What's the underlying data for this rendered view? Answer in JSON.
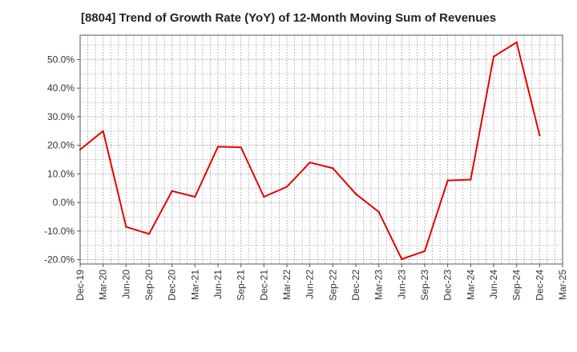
{
  "chart_data": {
    "type": "line",
    "title": "[8804]  Trend of Growth Rate (YoY) of 12-Month Moving Sum of Revenues",
    "xlabel": "",
    "ylabel": "",
    "x_ticks": [
      "Dec-19",
      "Mar-20",
      "Jun-20",
      "Sep-20",
      "Dec-20",
      "Mar-21",
      "Jun-21",
      "Sep-21",
      "Dec-21",
      "Mar-22",
      "Jun-22",
      "Sep-22",
      "Dec-22",
      "Mar-23",
      "Jun-23",
      "Sep-23",
      "Dec-23",
      "Mar-24",
      "Jun-24",
      "Sep-24",
      "Dec-24",
      "Mar-25"
    ],
    "y_ticks": [
      "-20.0%",
      "-10.0%",
      "0.0%",
      "10.0%",
      "20.0%",
      "30.0%",
      "40.0%",
      "50.0%"
    ],
    "y_tick_values": [
      -20,
      -10,
      0,
      10,
      20,
      30,
      40,
      50
    ],
    "ylim": [
      -21.5,
      58.5
    ],
    "grid": true,
    "series": [
      {
        "color": "#e60000",
        "x": [
          "Dec-19",
          "Mar-20",
          "Jun-20",
          "Sep-20",
          "Dec-20",
          "Mar-21",
          "Jun-21",
          "Sep-21",
          "Dec-21",
          "Mar-22",
          "Jun-22",
          "Sep-22",
          "Dec-22",
          "Mar-23",
          "Jun-23",
          "Sep-23",
          "Dec-23",
          "Mar-24",
          "Jun-24",
          "Sep-24",
          "Dec-24"
        ],
        "values": [
          18.5,
          25.0,
          -8.5,
          -11.0,
          4.0,
          2.0,
          19.5,
          19.3,
          2.0,
          5.5,
          14.0,
          12.0,
          3.0,
          -3.3,
          -19.8,
          -17.0,
          7.7,
          8.0,
          51.0,
          56.0,
          23.5
        ]
      }
    ]
  }
}
